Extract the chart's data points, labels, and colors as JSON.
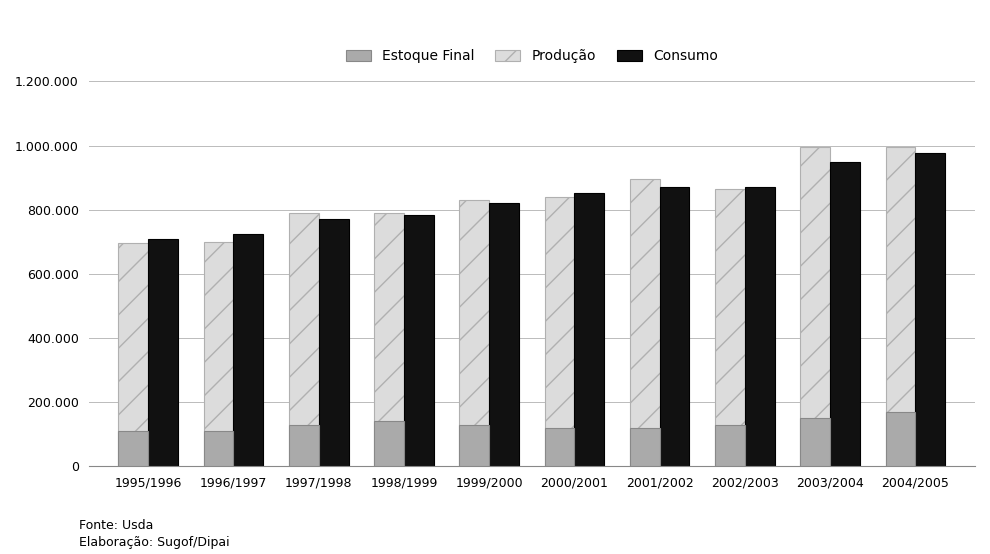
{
  "categories": [
    "1995/1996",
    "1996/1997",
    "1997/1998",
    "1998/1999",
    "1999/2000",
    "2000/2001",
    "2001/2002",
    "2002/2003",
    "2003/2004",
    "2004/2005"
  ],
  "estoque_final": [
    110000,
    110000,
    130000,
    140000,
    130000,
    120000,
    120000,
    130000,
    150000,
    170000
  ],
  "producao": [
    695000,
    700000,
    790000,
    790000,
    830000,
    840000,
    895000,
    865000,
    995000,
    995000
  ],
  "consumo": [
    708000,
    725000,
    770000,
    783000,
    820000,
    852000,
    872000,
    872000,
    950000,
    978000
  ],
  "ylim": [
    0,
    1200000
  ],
  "yticks": [
    0,
    200000,
    400000,
    600000,
    800000,
    1000000,
    1200000
  ],
  "ytick_labels": [
    "0",
    "200.000",
    "400.000",
    "600.000",
    "800.000",
    "1.000.000",
    "1.200.000"
  ],
  "legend_labels": [
    "Estoque Final",
    "Produção",
    "Consumo"
  ],
  "estoque_color": "#aaaaaa",
  "producao_color": "#e8e8e8",
  "consumo_color": "#111111",
  "background_color": "#ffffff",
  "footer_line1": "Fonte: Usda",
  "footer_line2": "Elaboração: Sugof/Dipai",
  "bar_width": 0.35,
  "grid_color": "#bbbbbb"
}
